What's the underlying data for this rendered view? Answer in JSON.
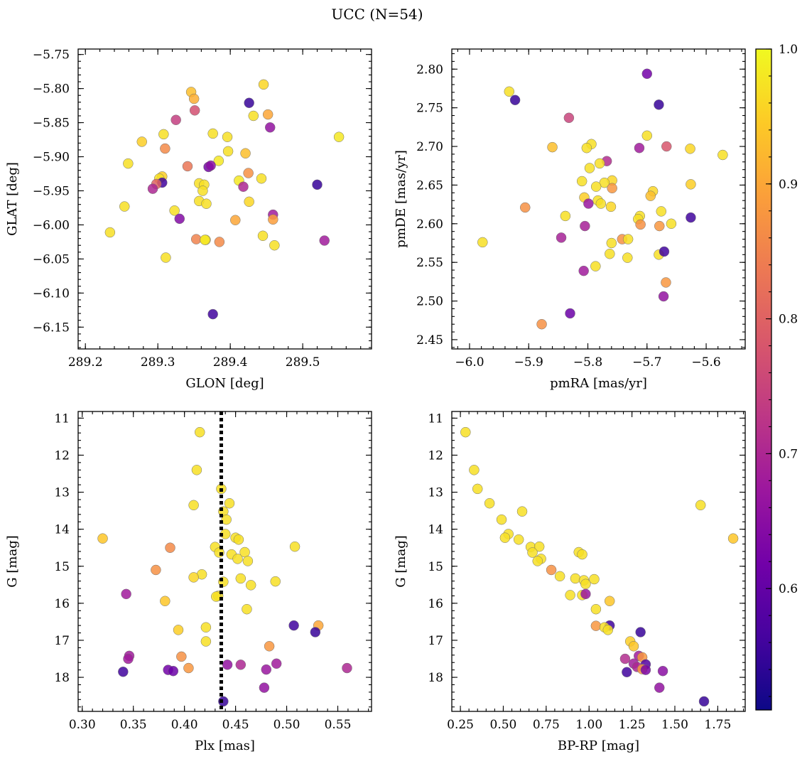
{
  "title": "UCC (N=54)",
  "colorbar": {
    "min": 0.51,
    "max": 1.0,
    "ticks": [
      "0.6",
      "0.7",
      "0.8",
      "0.9",
      "1.0"
    ],
    "colormap": "plasma",
    "colors": [
      "#0d0887",
      "#46039f",
      "#7201a8",
      "#9c179e",
      "#bd3786",
      "#d8576b",
      "#ed7953",
      "#fb9f3a",
      "#fdca26",
      "#f0f921"
    ]
  },
  "chart_data": [
    {
      "type": "scatter",
      "xlabel": "GLON [deg]",
      "ylabel": "GLAT [deg]",
      "xlim": [
        289.19,
        289.595
      ],
      "ylim": [
        -6.182,
        -5.742
      ],
      "y_inverted": false,
      "xticks": [
        "289.2",
        "289.3",
        "289.4",
        "289.5"
      ],
      "yticks": [
        "−5.75",
        "−5.80",
        "−5.85",
        "−5.90",
        "−5.95",
        "−6.00",
        "−6.05",
        "−6.10",
        "−6.15"
      ],
      "x_minor_step": 0.02,
      "y_minor_step": 0.01,
      "points": [
        [
          289.446,
          -5.794,
          0.96
        ],
        [
          289.346,
          -5.805,
          0.93
        ],
        [
          289.35,
          -5.815,
          0.91
        ],
        [
          289.426,
          -5.821,
          0.55
        ],
        [
          289.351,
          -5.832,
          0.77
        ],
        [
          289.432,
          -5.84,
          0.97
        ],
        [
          289.452,
          -5.838,
          0.9
        ],
        [
          289.325,
          -5.846,
          0.74
        ],
        [
          289.455,
          -5.857,
          0.66
        ],
        [
          289.376,
          -5.866,
          0.97
        ],
        [
          289.396,
          -5.871,
          0.97
        ],
        [
          289.55,
          -5.871,
          0.98
        ],
        [
          289.308,
          -5.867,
          0.97
        ],
        [
          289.278,
          -5.878,
          0.95
        ],
        [
          289.31,
          -5.888,
          0.86
        ],
        [
          289.397,
          -5.892,
          0.97
        ],
        [
          289.421,
          -5.895,
          0.93
        ],
        [
          289.384,
          -5.906,
          0.98
        ],
        [
          289.259,
          -5.91,
          0.97
        ],
        [
          289.341,
          -5.914,
          0.83
        ],
        [
          289.37,
          -5.915,
          0.62
        ],
        [
          289.373,
          -5.913,
          0.65
        ],
        [
          289.425,
          -5.924,
          0.87
        ],
        [
          289.306,
          -5.929,
          0.95
        ],
        [
          289.302,
          -5.932,
          0.97
        ],
        [
          289.412,
          -5.935,
          0.98
        ],
        [
          289.443,
          -5.932,
          0.97
        ],
        [
          289.306,
          -5.938,
          0.56
        ],
        [
          289.298,
          -5.94,
          0.8
        ],
        [
          289.293,
          -5.947,
          0.7
        ],
        [
          289.357,
          -5.939,
          0.97
        ],
        [
          289.364,
          -5.941,
          0.97
        ],
        [
          289.418,
          -5.944,
          0.7
        ],
        [
          289.52,
          -5.941,
          0.55
        ],
        [
          289.362,
          -5.95,
          0.97
        ],
        [
          289.254,
          -5.973,
          0.97
        ],
        [
          289.357,
          -5.965,
          0.97
        ],
        [
          289.367,
          -5.969,
          0.97
        ],
        [
          289.426,
          -5.966,
          0.96
        ],
        [
          289.323,
          -5.979,
          0.97
        ],
        [
          289.33,
          -5.991,
          0.64
        ],
        [
          289.459,
          -5.985,
          0.68
        ],
        [
          289.459,
          -5.992,
          0.89
        ],
        [
          289.407,
          -5.993,
          0.9
        ],
        [
          289.234,
          -6.011,
          0.97
        ],
        [
          289.445,
          -6.016,
          0.97
        ],
        [
          289.353,
          -6.021,
          0.85
        ],
        [
          289.366,
          -6.022,
          0.97
        ],
        [
          289.365,
          -6.022,
          0.98
        ],
        [
          289.385,
          -6.025,
          0.86
        ],
        [
          289.53,
          -6.023,
          0.68
        ],
        [
          289.461,
          -6.03,
          0.97
        ],
        [
          289.311,
          -6.048,
          0.97
        ],
        [
          289.376,
          -6.131,
          0.56
        ]
      ]
    },
    {
      "type": "scatter",
      "xlabel": "pmRA [mas/yr]",
      "ylabel": "pmDE [mas/yr]",
      "xlim": [
        -6.03,
        -5.534
      ],
      "ylim": [
        2.438,
        2.826
      ],
      "y_inverted": false,
      "xticks": [
        "−6.0",
        "−5.9",
        "−5.8",
        "−5.7",
        "−5.6"
      ],
      "yticks": [
        "2.45",
        "2.50",
        "2.55",
        "2.60",
        "2.65",
        "2.70",
        "2.75",
        "2.80"
      ],
      "x_minor_step": 0.02,
      "y_minor_step": 0.01,
      "points": [
        [
          -5.7,
          2.794,
          0.62
        ],
        [
          -5.933,
          2.771,
          0.97
        ],
        [
          -5.923,
          2.76,
          0.55
        ],
        [
          -5.68,
          2.754,
          0.55
        ],
        [
          -5.832,
          2.737,
          0.75
        ],
        [
          -5.7,
          2.714,
          0.97
        ],
        [
          -5.794,
          2.703,
          0.97
        ],
        [
          -5.802,
          2.698,
          0.97
        ],
        [
          -5.86,
          2.699,
          0.93
        ],
        [
          -5.713,
          2.698,
          0.68
        ],
        [
          -5.667,
          2.7,
          0.78
        ],
        [
          -5.627,
          2.697,
          0.96
        ],
        [
          -5.572,
          2.689,
          0.97
        ],
        [
          -5.768,
          2.681,
          0.71
        ],
        [
          -5.78,
          2.678,
          0.97
        ],
        [
          -5.797,
          2.672,
          0.97
        ],
        [
          -5.759,
          2.656,
          0.96
        ],
        [
          -5.81,
          2.655,
          0.97
        ],
        [
          -5.772,
          2.653,
          0.97
        ],
        [
          -5.786,
          2.648,
          0.97
        ],
        [
          -5.759,
          2.646,
          0.88
        ],
        [
          -5.626,
          2.651,
          0.95
        ],
        [
          -5.69,
          2.642,
          0.96
        ],
        [
          -5.694,
          2.636,
          0.93
        ],
        [
          -5.806,
          2.634,
          0.95
        ],
        [
          -5.783,
          2.63,
          0.97
        ],
        [
          -5.778,
          2.626,
          0.97
        ],
        [
          -5.799,
          2.626,
          0.67
        ],
        [
          -5.761,
          2.622,
          0.96
        ],
        [
          -5.906,
          2.621,
          0.87
        ],
        [
          -5.676,
          2.616,
          0.97
        ],
        [
          -5.712,
          2.61,
          0.97
        ],
        [
          -5.715,
          2.606,
          0.97
        ],
        [
          -5.838,
          2.61,
          0.97
        ],
        [
          -5.626,
          2.608,
          0.56
        ],
        [
          -5.711,
          2.599,
          0.87
        ],
        [
          -5.679,
          2.597,
          0.88
        ],
        [
          -5.805,
          2.597,
          0.69
        ],
        [
          -5.659,
          2.6,
          0.97
        ],
        [
          -5.845,
          2.582,
          0.69
        ],
        [
          -5.742,
          2.58,
          0.87
        ],
        [
          -5.732,
          2.58,
          0.97
        ],
        [
          -5.76,
          2.575,
          0.97
        ],
        [
          -5.978,
          2.576,
          0.97
        ],
        [
          -5.763,
          2.561,
          0.97
        ],
        [
          -5.68,
          2.56,
          0.97
        ],
        [
          -5.733,
          2.556,
          0.97
        ],
        [
          -5.671,
          2.564,
          0.56
        ],
        [
          -5.787,
          2.545,
          0.97
        ],
        [
          -5.807,
          2.539,
          0.68
        ],
        [
          -5.668,
          2.524,
          0.88
        ],
        [
          -5.672,
          2.506,
          0.66
        ],
        [
          -5.83,
          2.484,
          0.61
        ],
        [
          -5.878,
          2.47,
          0.87
        ]
      ]
    },
    {
      "type": "scatter",
      "xlabel": "Plx [mas]",
      "ylabel": "G [mag]",
      "xlim": [
        0.296,
        0.583
      ],
      "ylim": [
        18.92,
        10.82
      ],
      "y_inverted": true,
      "xticks": [
        "0.30",
        "0.35",
        "0.40",
        "0.45",
        "0.50",
        "0.55"
      ],
      "yticks": [
        "11",
        "12",
        "13",
        "14",
        "15",
        "16",
        "17",
        "18"
      ],
      "x_minor_step": 0.01,
      "y_minor_step": 0.2,
      "vline": {
        "x": 0.436,
        "style": "dotted",
        "color": "#000000"
      },
      "points": [
        [
          0.415,
          11.38,
          0.97
        ],
        [
          0.412,
          12.4,
          0.97
        ],
        [
          0.436,
          12.91,
          0.97
        ],
        [
          0.409,
          13.35,
          0.97
        ],
        [
          0.444,
          13.3,
          0.97
        ],
        [
          0.438,
          13.52,
          0.97
        ],
        [
          0.441,
          13.74,
          0.97
        ],
        [
          0.44,
          14.13,
          0.97
        ],
        [
          0.45,
          14.23,
          0.97
        ],
        [
          0.453,
          14.28,
          0.97
        ],
        [
          0.32,
          14.25,
          0.94
        ],
        [
          0.386,
          14.5,
          0.86
        ],
        [
          0.43,
          14.48,
          0.97
        ],
        [
          0.459,
          14.62,
          0.97
        ],
        [
          0.446,
          14.68,
          0.97
        ],
        [
          0.434,
          14.63,
          0.97
        ],
        [
          0.508,
          14.47,
          0.97
        ],
        [
          0.452,
          14.8,
          0.97
        ],
        [
          0.462,
          14.86,
          0.97
        ],
        [
          0.372,
          15.1,
          0.87
        ],
        [
          0.417,
          15.22,
          0.97
        ],
        [
          0.409,
          15.3,
          0.96
        ],
        [
          0.455,
          15.33,
          0.97
        ],
        [
          0.438,
          15.42,
          0.97
        ],
        [
          0.489,
          15.41,
          0.97
        ],
        [
          0.465,
          15.51,
          0.97
        ],
        [
          0.343,
          15.75,
          0.68
        ],
        [
          0.433,
          15.8,
          0.97
        ],
        [
          0.431,
          15.82,
          0.97
        ],
        [
          0.381,
          15.94,
          0.94
        ],
        [
          0.461,
          16.16,
          0.97
        ],
        [
          0.507,
          16.6,
          0.56
        ],
        [
          0.531,
          16.6,
          0.9
        ],
        [
          0.421,
          16.65,
          0.97
        ],
        [
          0.394,
          16.72,
          0.95
        ],
        [
          0.528,
          16.78,
          0.55
        ],
        [
          0.421,
          17.03,
          0.97
        ],
        [
          0.483,
          17.16,
          0.88
        ],
        [
          0.346,
          17.42,
          0.68
        ],
        [
          0.397,
          17.44,
          0.87
        ],
        [
          0.345,
          17.5,
          0.68
        ],
        [
          0.49,
          17.63,
          0.68
        ],
        [
          0.442,
          17.66,
          0.66
        ],
        [
          0.455,
          17.66,
          0.7
        ],
        [
          0.559,
          17.75,
          0.7
        ],
        [
          0.404,
          17.75,
          0.88
        ],
        [
          0.48,
          17.79,
          0.67
        ],
        [
          0.384,
          17.8,
          0.62
        ],
        [
          0.389,
          17.83,
          0.61
        ],
        [
          0.34,
          17.85,
          0.56
        ],
        [
          0.478,
          18.28,
          0.66
        ],
        [
          0.438,
          18.65,
          0.55
        ]
      ]
    },
    {
      "type": "scatter",
      "xlabel": "BP-RP [mag]",
      "ylabel": "G [mag]",
      "xlim": [
        0.2,
        1.91
      ],
      "ylim": [
        18.92,
        10.82
      ],
      "y_inverted": true,
      "xticks": [
        "0.25",
        "0.50",
        "0.75",
        "1.00",
        "1.25",
        "1.50",
        "1.75"
      ],
      "yticks": [
        "11",
        "12",
        "13",
        "14",
        "15",
        "16",
        "17",
        "18"
      ],
      "x_minor_step": 0.05,
      "y_minor_step": 0.2,
      "points": [
        [
          0.28,
          11.38,
          0.97
        ],
        [
          0.33,
          12.4,
          0.97
        ],
        [
          0.35,
          12.91,
          0.97
        ],
        [
          0.42,
          13.3,
          0.97
        ],
        [
          0.61,
          13.52,
          0.97
        ],
        [
          1.65,
          13.35,
          0.97
        ],
        [
          0.49,
          13.74,
          0.97
        ],
        [
          0.53,
          14.13,
          0.97
        ],
        [
          0.51,
          14.23,
          0.97
        ],
        [
          0.59,
          14.28,
          0.97
        ],
        [
          1.84,
          14.25,
          0.94
        ],
        [
          0.66,
          14.48,
          0.97
        ],
        [
          0.71,
          14.47,
          0.97
        ],
        [
          0.67,
          14.63,
          0.97
        ],
        [
          0.94,
          14.62,
          0.97
        ],
        [
          0.96,
          14.68,
          0.97
        ],
        [
          0.72,
          14.8,
          0.97
        ],
        [
          0.7,
          14.86,
          0.97
        ],
        [
          0.78,
          15.1,
          0.87
        ],
        [
          0.83,
          15.27,
          0.97
        ],
        [
          0.92,
          15.33,
          0.97
        ],
        [
          0.97,
          15.38,
          0.97
        ],
        [
          1.03,
          15.35,
          0.97
        ],
        [
          0.98,
          15.48,
          0.97
        ],
        [
          0.89,
          15.78,
          0.97
        ],
        [
          0.96,
          15.78,
          0.97
        ],
        [
          0.98,
          15.75,
          0.67
        ],
        [
          1.12,
          15.94,
          0.94
        ],
        [
          1.04,
          16.16,
          0.97
        ],
        [
          1.12,
          16.6,
          0.56
        ],
        [
          1.04,
          16.61,
          0.88
        ],
        [
          1.09,
          16.65,
          0.97
        ],
        [
          1.11,
          16.72,
          0.97
        ],
        [
          1.3,
          16.78,
          0.55
        ],
        [
          1.24,
          17.03,
          0.95
        ],
        [
          1.26,
          17.16,
          0.94
        ],
        [
          1.29,
          17.42,
          0.68
        ],
        [
          1.31,
          17.46,
          0.88
        ],
        [
          1.21,
          17.5,
          0.71
        ],
        [
          1.26,
          17.63,
          0.68
        ],
        [
          1.33,
          17.65,
          0.58
        ],
        [
          1.28,
          17.72,
          0.7
        ],
        [
          1.31,
          17.78,
          0.88
        ],
        [
          1.33,
          17.8,
          0.63
        ],
        [
          1.43,
          17.83,
          0.65
        ],
        [
          1.22,
          17.86,
          0.56
        ],
        [
          1.41,
          18.28,
          0.66
        ],
        [
          1.67,
          18.65,
          0.55
        ]
      ]
    }
  ]
}
